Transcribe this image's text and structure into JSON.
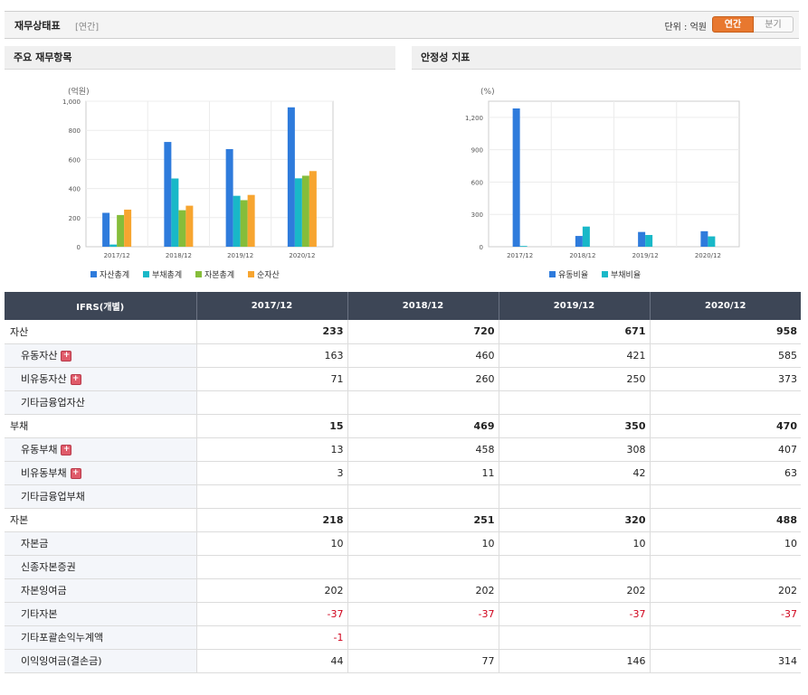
{
  "header": {
    "title": "재무상태표",
    "subtitle": "[연간]",
    "unit_label": "단위 : 억원",
    "toggle_annual": "연간",
    "toggle_quarter": "분기"
  },
  "panels": {
    "left_title": "주요 재무항목",
    "right_title": "안정성 지표"
  },
  "colors": {
    "asset": "#2e7bdc",
    "liability": "#19b8c8",
    "equity": "#86bd3a",
    "net": "#f7a530",
    "accent": "#e8782f",
    "header_bg": "#3d4656"
  },
  "chart_data": [
    {
      "type": "bar",
      "unit_label": "(억원)",
      "categories": [
        "2017/12",
        "2018/12",
        "2019/12",
        "2020/12"
      ],
      "series": [
        {
          "name": "자산총계",
          "values": [
            233,
            720,
            671,
            958
          ]
        },
        {
          "name": "부채총계",
          "values": [
            15,
            469,
            350,
            470
          ]
        },
        {
          "name": "자본총계",
          "values": [
            218,
            251,
            320,
            488
          ]
        },
        {
          "name": "순자산",
          "values": [
            255,
            282,
            356,
            520
          ]
        }
      ],
      "yticks": [
        "0",
        "200",
        "400",
        "600",
        "800",
        "1,000"
      ],
      "ylim": [
        0,
        1000
      ],
      "grid": true,
      "legend": "bottom"
    },
    {
      "type": "bar",
      "unit_label": "(%)",
      "categories": [
        "2017/12",
        "2018/12",
        "2019/12",
        "2020/12"
      ],
      "series": [
        {
          "name": "유동비율",
          "values": [
            1283,
            100,
            137,
            144
          ]
        },
        {
          "name": "부채비율",
          "values": [
            7,
            187,
            109,
            96
          ]
        }
      ],
      "yticks": [
        "0",
        "300",
        "600",
        "900",
        "1,200"
      ],
      "ylim": [
        0,
        1350
      ],
      "grid": true,
      "legend": "bottom"
    }
  ],
  "table": {
    "header": [
      "IFRS(개별)",
      "2017/12",
      "2018/12",
      "2019/12",
      "2020/12"
    ],
    "rows": [
      {
        "label": "자산",
        "type": "group",
        "values": [
          "233",
          "720",
          "671",
          "958"
        ]
      },
      {
        "label": "유동자산",
        "type": "sub",
        "expand": true,
        "values": [
          "163",
          "460",
          "421",
          "585"
        ]
      },
      {
        "label": "비유동자산",
        "type": "sub",
        "expand": true,
        "values": [
          "71",
          "260",
          "250",
          "373"
        ]
      },
      {
        "label": "기타금융업자산",
        "type": "sub",
        "expand": false,
        "values": [
          "",
          "",
          "",
          ""
        ]
      },
      {
        "label": "부채",
        "type": "group",
        "values": [
          "15",
          "469",
          "350",
          "470"
        ]
      },
      {
        "label": "유동부채",
        "type": "sub",
        "expand": true,
        "values": [
          "13",
          "458",
          "308",
          "407"
        ]
      },
      {
        "label": "비유동부채",
        "type": "sub",
        "expand": true,
        "values": [
          "3",
          "11",
          "42",
          "63"
        ]
      },
      {
        "label": "기타금융업부채",
        "type": "sub",
        "expand": false,
        "values": [
          "",
          "",
          "",
          ""
        ]
      },
      {
        "label": "자본",
        "type": "group",
        "values": [
          "218",
          "251",
          "320",
          "488"
        ]
      },
      {
        "label": "자본금",
        "type": "sub",
        "expand": false,
        "values": [
          "10",
          "10",
          "10",
          "10"
        ]
      },
      {
        "label": "신종자본증권",
        "type": "sub",
        "expand": false,
        "values": [
          "",
          "",
          "",
          ""
        ]
      },
      {
        "label": "자본잉여금",
        "type": "sub",
        "expand": false,
        "values": [
          "202",
          "202",
          "202",
          "202"
        ]
      },
      {
        "label": "기타자본",
        "type": "sub",
        "expand": false,
        "values": [
          "-37",
          "-37",
          "-37",
          "-37"
        ]
      },
      {
        "label": "기타포괄손익누계액",
        "type": "sub",
        "expand": false,
        "values": [
          "-1",
          "",
          "",
          ""
        ]
      },
      {
        "label": "이익잉여금(결손금)",
        "type": "sub",
        "expand": false,
        "values": [
          "44",
          "77",
          "146",
          "314"
        ]
      }
    ]
  }
}
